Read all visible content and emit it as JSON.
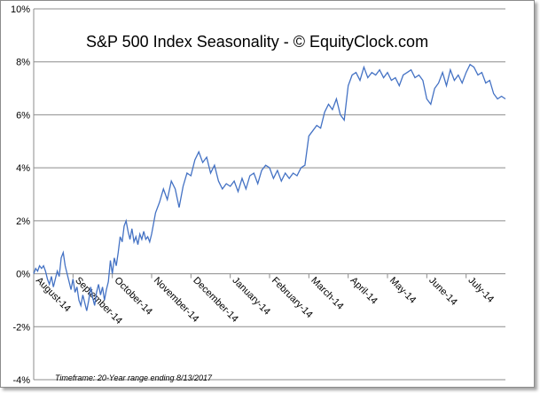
{
  "chart_data": {
    "type": "line",
    "title": "S&P 500 Index Seasonality - © EquityClock.com",
    "footnote": "Timeframe: 20-Year range ending 8/13/2017",
    "ylim": [
      -4,
      10
    ],
    "yticks": [
      -4,
      -2,
      0,
      2,
      4,
      6,
      8,
      10
    ],
    "ytick_labels": [
      "-4%",
      "-2%",
      "0%",
      "2%",
      "4%",
      "6%",
      "8%",
      "10%"
    ],
    "xlim": [
      0,
      12
    ],
    "xticks": [
      0,
      1,
      2,
      3,
      4,
      5,
      6,
      7,
      8,
      9,
      10,
      11
    ],
    "xtick_labels": [
      "August-14",
      "September-14",
      "October-14",
      "November-14",
      "December-14",
      "January-14",
      "February-14",
      "March-14",
      "April-14",
      "May-14",
      "June-14",
      "July-14"
    ],
    "grid": true,
    "line_color": "#4472c4",
    "series": [
      {
        "x": [
          0,
          0.05,
          0.1,
          0.15,
          0.2,
          0.25,
          0.3,
          0.35,
          0.4,
          0.45,
          0.5,
          0.55,
          0.6,
          0.65,
          0.7,
          0.75,
          0.8,
          0.85,
          0.9,
          0.95,
          1.0,
          1.05,
          1.1,
          1.15,
          1.2,
          1.25,
          1.3,
          1.35,
          1.4,
          1.45,
          1.5,
          1.55,
          1.6,
          1.65,
          1.7,
          1.75,
          1.8,
          1.85,
          1.9,
          1.95,
          2.0,
          2.05,
          2.1,
          2.15,
          2.2,
          2.25,
          2.3,
          2.35,
          2.4,
          2.45,
          2.5,
          2.55,
          2.6,
          2.65,
          2.7,
          2.75,
          2.8,
          2.85,
          2.9,
          2.95,
          3.0,
          3.1,
          3.2,
          3.3,
          3.4,
          3.5,
          3.6,
          3.7,
          3.8,
          3.9,
          4.0,
          4.1,
          4.2,
          4.3,
          4.4,
          4.5,
          4.6,
          4.7,
          4.8,
          4.9,
          5.0,
          5.1,
          5.2,
          5.3,
          5.4,
          5.5,
          5.6,
          5.7,
          5.8,
          5.9,
          6.0,
          6.1,
          6.2,
          6.3,
          6.4,
          6.5,
          6.6,
          6.7,
          6.8,
          6.9,
          7.0,
          7.1,
          7.2,
          7.3,
          7.4,
          7.5,
          7.6,
          7.7,
          7.8,
          7.9,
          8.0,
          8.1,
          8.2,
          8.3,
          8.4,
          8.5,
          8.6,
          8.7,
          8.8,
          8.9,
          9.0,
          9.1,
          9.2,
          9.3,
          9.4,
          9.5,
          9.6,
          9.7,
          9.8,
          9.9,
          10.0,
          10.1,
          10.2,
          10.3,
          10.4,
          10.5,
          10.6,
          10.7,
          10.8,
          10.9,
          11.0,
          11.1,
          11.2,
          11.3,
          11.4,
          11.5,
          11.6,
          11.7,
          11.8,
          11.9,
          12.0
        ],
        "values": [
          0.0,
          0.2,
          0.1,
          0.3,
          0.2,
          0.3,
          0.1,
          -0.2,
          -0.4,
          -0.1,
          -0.5,
          -0.2,
          0.1,
          -0.1,
          0.6,
          0.8,
          0.3,
          0.0,
          -0.3,
          -0.6,
          -0.2,
          -0.7,
          -0.5,
          -1.0,
          -1.2,
          -0.8,
          -1.1,
          -1.4,
          -1.0,
          -0.5,
          -0.9,
          -1.2,
          -0.7,
          -0.4,
          -0.8,
          -0.5,
          -1.0,
          -0.6,
          -0.3,
          0.5,
          0.0,
          0.6,
          0.3,
          0.8,
          1.4,
          1.2,
          1.8,
          2.0,
          1.6,
          1.3,
          1.7,
          1.2,
          1.4,
          1.1,
          1.5,
          1.3,
          1.6,
          1.3,
          1.4,
          1.2,
          1.5,
          2.3,
          2.7,
          3.2,
          2.8,
          3.5,
          3.2,
          2.5,
          3.3,
          3.8,
          3.7,
          4.3,
          4.6,
          4.2,
          4.4,
          3.8,
          4.1,
          3.5,
          3.2,
          3.4,
          3.3,
          3.5,
          3.1,
          3.6,
          3.2,
          3.7,
          3.8,
          3.4,
          3.9,
          4.1,
          4.0,
          3.6,
          3.9,
          3.5,
          3.8,
          3.6,
          3.8,
          3.7,
          4.0,
          4.1,
          5.2,
          5.4,
          5.6,
          5.5,
          6.1,
          6.4,
          6.2,
          6.6,
          6.0,
          5.8,
          7.1,
          7.5,
          7.6,
          7.3,
          7.8,
          7.4,
          7.6,
          7.5,
          7.7,
          7.4,
          7.6,
          7.3,
          7.4,
          7.1,
          7.5,
          7.6,
          7.7,
          7.4,
          7.5,
          7.3,
          6.6,
          6.4,
          7.0,
          7.2,
          7.6,
          7.1,
          7.7,
          7.3,
          7.5,
          7.2,
          7.6,
          7.9,
          7.8,
          7.5,
          7.6,
          7.2,
          7.3,
          6.8,
          6.6,
          6.7,
          6.6
        ]
      }
    ]
  }
}
